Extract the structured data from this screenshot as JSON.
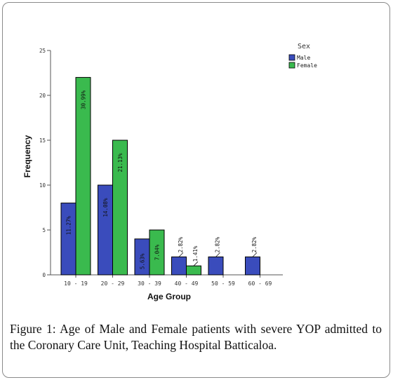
{
  "caption": {
    "label": "Figure 1:",
    "text": "Age of Male and Female patients with severe YOP admitted to the Coronary Care Unit, Teaching Hospital Batticaloa."
  },
  "chart_data": {
    "type": "bar",
    "title": "",
    "xlabel": "Age Group",
    "ylabel": "Frequency",
    "ylim": [
      0,
      25
    ],
    "yticks": [
      0,
      5,
      10,
      15,
      20,
      25
    ],
    "grid": false,
    "legend_title": "Sex",
    "legend_position": "top-right",
    "categories": [
      "10 - 19",
      "20 - 29",
      "30 - 39",
      "40 - 49",
      "50 - 59",
      "60 - 69"
    ],
    "series": [
      {
        "name": "Male",
        "color": "#3a4cbc",
        "values": [
          8,
          10,
          4,
          2,
          2,
          2
        ],
        "labels": [
          "11.27%",
          "14.08%",
          "5.63%",
          "2.82%",
          "2.82%",
          "2.82%"
        ]
      },
      {
        "name": "Female",
        "color": "#3aba4e",
        "values": [
          22,
          15,
          5,
          1,
          0,
          0
        ],
        "labels": [
          "30.99%",
          "21.13%",
          "7.04%",
          "1.41%",
          "",
          ""
        ]
      }
    ]
  }
}
